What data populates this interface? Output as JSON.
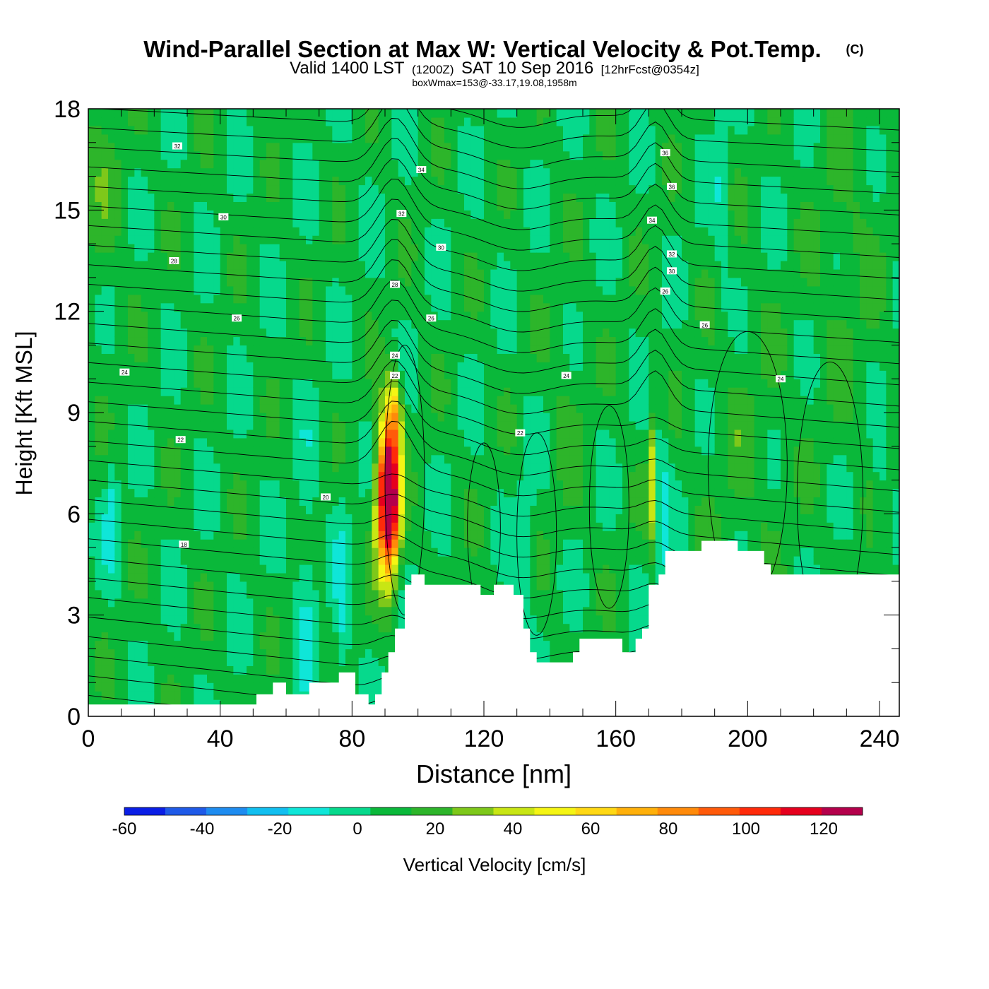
{
  "chart_data": {
    "type": "heatmap",
    "title": "Wind-Parallel Section at Max W: Vertical Velocity & Pot.Temp.",
    "title_mark": "(C)",
    "subtitle_parts": [
      "Valid 1400 LST",
      "(1200Z)",
      "SAT 10 Sep 2016",
      "[12hrFcst@0354z]"
    ],
    "subtitle2": "boxWmax=153@-33.17,19.08,1958m",
    "xlabel": "Distance [nm]",
    "ylabel": "Height [Kft MSL]",
    "xlim": [
      0,
      246
    ],
    "ylim": [
      0,
      18
    ],
    "x_ticks": [
      0,
      40,
      80,
      120,
      160,
      200,
      240
    ],
    "y_ticks": [
      0,
      3,
      6,
      9,
      12,
      15,
      18
    ],
    "colorbar": {
      "label": "Vertical Velocity [cm/s]",
      "range": [
        -60,
        130
      ],
      "step": 10,
      "tick_values": [
        -60,
        -40,
        -20,
        0,
        20,
        40,
        60,
        80,
        100,
        120
      ],
      "colors": [
        "#0a1ee6",
        "#1f5ae8",
        "#1e8cf0",
        "#12bff0",
        "#0fe6d8",
        "#06d98c",
        "#0ab83a",
        "#2db52a",
        "#7ec81a",
        "#c8e614",
        "#f5f514",
        "#ffd814",
        "#ffb00a",
        "#ff8a0a",
        "#ff5a0a",
        "#ff2a0a",
        "#e6001e",
        "#b4004b"
      ]
    },
    "updraft_core": {
      "x": 91,
      "height_kft": 6.5,
      "max_cm_s": 153
    },
    "terrain_kft": [
      [
        0,
        0.35
      ],
      [
        50,
        0.35
      ],
      [
        51,
        0.65
      ],
      [
        55,
        0.65
      ],
      [
        56,
        1.0
      ],
      [
        59,
        1.0
      ],
      [
        60,
        0.65
      ],
      [
        66,
        0.65
      ],
      [
        67,
        1.0
      ],
      [
        75,
        1.0
      ],
      [
        76,
        1.3
      ],
      [
        80,
        1.3
      ],
      [
        81,
        0.65
      ],
      [
        84,
        0.65
      ],
      [
        85,
        0.35
      ],
      [
        86,
        0.35
      ],
      [
        87,
        0.65
      ],
      [
        88,
        0.65
      ],
      [
        89,
        1.3
      ],
      [
        90,
        1.3
      ],
      [
        91,
        1.9
      ],
      [
        92,
        1.9
      ],
      [
        93,
        2.6
      ],
      [
        95,
        2.6
      ],
      [
        96,
        3.9
      ],
      [
        97,
        3.9
      ],
      [
        98,
        4.2
      ],
      [
        101,
        4.2
      ],
      [
        102,
        3.9
      ],
      [
        118,
        3.9
      ],
      [
        119,
        3.6
      ],
      [
        122,
        3.6
      ],
      [
        123,
        3.9
      ],
      [
        128,
        3.9
      ],
      [
        129,
        3.6
      ],
      [
        131,
        3.6
      ],
      [
        132,
        2.6
      ],
      [
        133,
        2.6
      ],
      [
        134,
        1.9
      ],
      [
        135,
        1.9
      ],
      [
        136,
        1.6
      ],
      [
        146,
        1.6
      ],
      [
        147,
        1.9
      ],
      [
        148,
        1.9
      ],
      [
        149,
        2.3
      ],
      [
        161,
        2.3
      ],
      [
        162,
        1.9
      ],
      [
        165,
        1.9
      ],
      [
        166,
        2.3
      ],
      [
        167,
        2.3
      ],
      [
        168,
        2.6
      ],
      [
        169,
        2.6
      ],
      [
        170,
        3.9
      ],
      [
        172,
        3.9
      ],
      [
        173,
        4.2
      ],
      [
        174,
        4.2
      ],
      [
        175,
        4.9
      ],
      [
        185,
        4.9
      ],
      [
        186,
        5.2
      ],
      [
        196,
        5.2
      ],
      [
        197,
        4.9
      ],
      [
        204,
        4.9
      ],
      [
        205,
        4.5
      ],
      [
        206,
        4.5
      ],
      [
        207,
        4.2
      ],
      [
        246,
        4.2
      ]
    ],
    "theta_contour_labels": [
      {
        "value": "32",
        "x": 27,
        "y": 16.9
      },
      {
        "value": "34",
        "x": 101,
        "y": 16.2
      },
      {
        "value": "36",
        "x": 175,
        "y": 16.7
      },
      {
        "value": "36",
        "x": 177,
        "y": 15.7
      },
      {
        "value": "32",
        "x": 95,
        "y": 14.9
      },
      {
        "value": "34",
        "x": 171,
        "y": 14.7
      },
      {
        "value": "30",
        "x": 41,
        "y": 14.8
      },
      {
        "value": "30",
        "x": 107,
        "y": 13.9
      },
      {
        "value": "32",
        "x": 177,
        "y": 13.7
      },
      {
        "value": "30",
        "x": 177,
        "y": 13.2
      },
      {
        "value": "28",
        "x": 26,
        "y": 13.5
      },
      {
        "value": "28",
        "x": 93,
        "y": 12.8
      },
      {
        "value": "26",
        "x": 175,
        "y": 12.6
      },
      {
        "value": "26",
        "x": 45,
        "y": 11.8
      },
      {
        "value": "26",
        "x": 104,
        "y": 11.8
      },
      {
        "value": "26",
        "x": 187,
        "y": 11.6
      },
      {
        "value": "24",
        "x": 11,
        "y": 10.2
      },
      {
        "value": "24",
        "x": 93,
        "y": 10.7
      },
      {
        "value": "22",
        "x": 93,
        "y": 10.1
      },
      {
        "value": "24",
        "x": 145,
        "y": 10.1
      },
      {
        "value": "24",
        "x": 210,
        "y": 10.0
      },
      {
        "value": "22",
        "x": 28,
        "y": 8.2
      },
      {
        "value": "22",
        "x": 131,
        "y": 8.4
      },
      {
        "value": "20",
        "x": 72,
        "y": 6.5
      },
      {
        "value": "18",
        "x": 29,
        "y": 5.1
      }
    ]
  }
}
